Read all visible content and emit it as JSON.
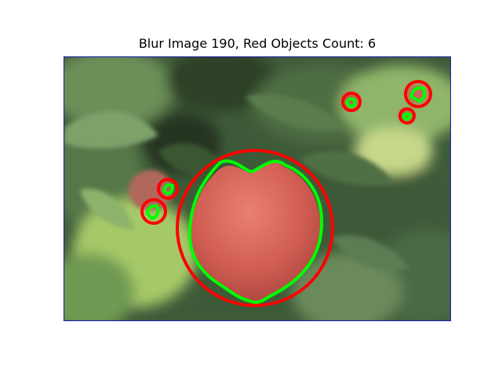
{
  "figure": {
    "title": "Blur Image 190, Red Objects Count: 6"
  },
  "image": {
    "description_icon": "photo-icon",
    "colors": {
      "frame": "#1a1aa6",
      "circle": "#ff0000",
      "contour": "#00ff00",
      "foliage_dark": "#2f4a2c",
      "foliage_mid": "#5f8a4a",
      "foliage_light": "#a9cf6f",
      "fruit": "#d9645a"
    }
  },
  "detections": {
    "count": 6
  }
}
